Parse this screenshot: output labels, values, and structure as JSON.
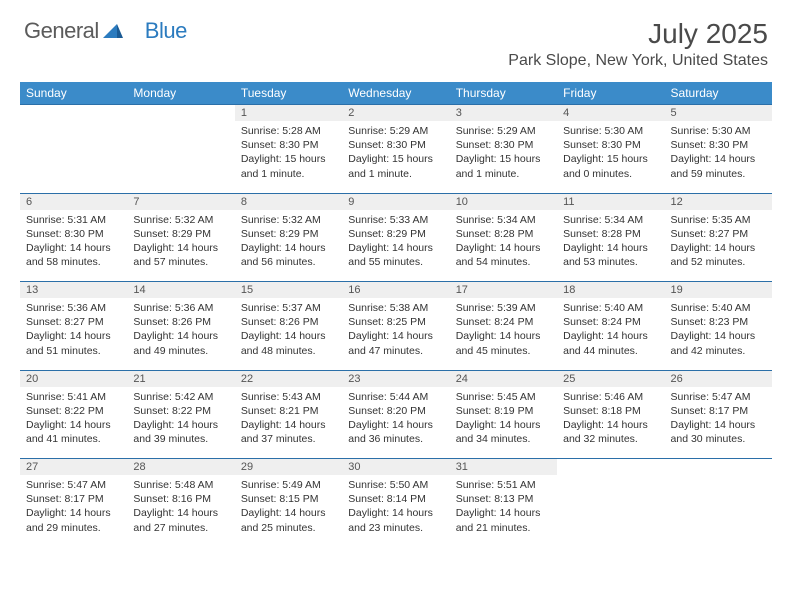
{
  "logo": {
    "text1": "General",
    "text2": "Blue"
  },
  "title": "July 2025",
  "location": "Park Slope, New York, United States",
  "colors": {
    "header_bg": "#3b8bc9",
    "header_text": "#ffffff",
    "daynum_bg": "#efefef",
    "row_border": "#2b6fa8",
    "logo_gray": "#5b5b5b",
    "logo_blue": "#2b7bbf",
    "body_text": "#333333"
  },
  "weekdays": [
    "Sunday",
    "Monday",
    "Tuesday",
    "Wednesday",
    "Thursday",
    "Friday",
    "Saturday"
  ],
  "weeks": [
    [
      null,
      null,
      {
        "n": "1",
        "sr": "5:28 AM",
        "ss": "8:30 PM",
        "dl": "15 hours and 1 minute."
      },
      {
        "n": "2",
        "sr": "5:29 AM",
        "ss": "8:30 PM",
        "dl": "15 hours and 1 minute."
      },
      {
        "n": "3",
        "sr": "5:29 AM",
        "ss": "8:30 PM",
        "dl": "15 hours and 1 minute."
      },
      {
        "n": "4",
        "sr": "5:30 AM",
        "ss": "8:30 PM",
        "dl": "15 hours and 0 minutes."
      },
      {
        "n": "5",
        "sr": "5:30 AM",
        "ss": "8:30 PM",
        "dl": "14 hours and 59 minutes."
      }
    ],
    [
      {
        "n": "6",
        "sr": "5:31 AM",
        "ss": "8:30 PM",
        "dl": "14 hours and 58 minutes."
      },
      {
        "n": "7",
        "sr": "5:32 AM",
        "ss": "8:29 PM",
        "dl": "14 hours and 57 minutes."
      },
      {
        "n": "8",
        "sr": "5:32 AM",
        "ss": "8:29 PM",
        "dl": "14 hours and 56 minutes."
      },
      {
        "n": "9",
        "sr": "5:33 AM",
        "ss": "8:29 PM",
        "dl": "14 hours and 55 minutes."
      },
      {
        "n": "10",
        "sr": "5:34 AM",
        "ss": "8:28 PM",
        "dl": "14 hours and 54 minutes."
      },
      {
        "n": "11",
        "sr": "5:34 AM",
        "ss": "8:28 PM",
        "dl": "14 hours and 53 minutes."
      },
      {
        "n": "12",
        "sr": "5:35 AM",
        "ss": "8:27 PM",
        "dl": "14 hours and 52 minutes."
      }
    ],
    [
      {
        "n": "13",
        "sr": "5:36 AM",
        "ss": "8:27 PM",
        "dl": "14 hours and 51 minutes."
      },
      {
        "n": "14",
        "sr": "5:36 AM",
        "ss": "8:26 PM",
        "dl": "14 hours and 49 minutes."
      },
      {
        "n": "15",
        "sr": "5:37 AM",
        "ss": "8:26 PM",
        "dl": "14 hours and 48 minutes."
      },
      {
        "n": "16",
        "sr": "5:38 AM",
        "ss": "8:25 PM",
        "dl": "14 hours and 47 minutes."
      },
      {
        "n": "17",
        "sr": "5:39 AM",
        "ss": "8:24 PM",
        "dl": "14 hours and 45 minutes."
      },
      {
        "n": "18",
        "sr": "5:40 AM",
        "ss": "8:24 PM",
        "dl": "14 hours and 44 minutes."
      },
      {
        "n": "19",
        "sr": "5:40 AM",
        "ss": "8:23 PM",
        "dl": "14 hours and 42 minutes."
      }
    ],
    [
      {
        "n": "20",
        "sr": "5:41 AM",
        "ss": "8:22 PM",
        "dl": "14 hours and 41 minutes."
      },
      {
        "n": "21",
        "sr": "5:42 AM",
        "ss": "8:22 PM",
        "dl": "14 hours and 39 minutes."
      },
      {
        "n": "22",
        "sr": "5:43 AM",
        "ss": "8:21 PM",
        "dl": "14 hours and 37 minutes."
      },
      {
        "n": "23",
        "sr": "5:44 AM",
        "ss": "8:20 PM",
        "dl": "14 hours and 36 minutes."
      },
      {
        "n": "24",
        "sr": "5:45 AM",
        "ss": "8:19 PM",
        "dl": "14 hours and 34 minutes."
      },
      {
        "n": "25",
        "sr": "5:46 AM",
        "ss": "8:18 PM",
        "dl": "14 hours and 32 minutes."
      },
      {
        "n": "26",
        "sr": "5:47 AM",
        "ss": "8:17 PM",
        "dl": "14 hours and 30 minutes."
      }
    ],
    [
      {
        "n": "27",
        "sr": "5:47 AM",
        "ss": "8:17 PM",
        "dl": "14 hours and 29 minutes."
      },
      {
        "n": "28",
        "sr": "5:48 AM",
        "ss": "8:16 PM",
        "dl": "14 hours and 27 minutes."
      },
      {
        "n": "29",
        "sr": "5:49 AM",
        "ss": "8:15 PM",
        "dl": "14 hours and 25 minutes."
      },
      {
        "n": "30",
        "sr": "5:50 AM",
        "ss": "8:14 PM",
        "dl": "14 hours and 23 minutes."
      },
      {
        "n": "31",
        "sr": "5:51 AM",
        "ss": "8:13 PM",
        "dl": "14 hours and 21 minutes."
      },
      null,
      null
    ]
  ],
  "labels": {
    "sunrise": "Sunrise:",
    "sunset": "Sunset:",
    "daylight": "Daylight:"
  }
}
